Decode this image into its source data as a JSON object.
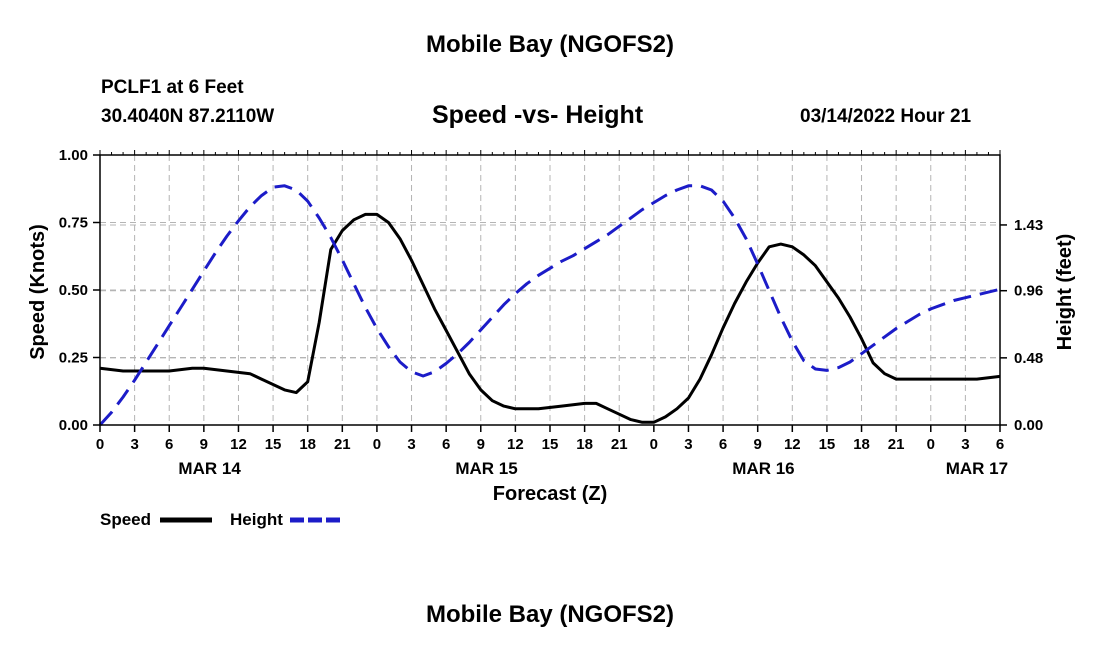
{
  "header": {
    "title": "Mobile Bay (NGOFS2)",
    "station": "PCLF1 at 6 Feet",
    "coords": "30.4040N  87.2110W",
    "subtitle": "Speed -vs- Height",
    "timestamp": "03/14/2022 Hour 21",
    "bottom_title": "Mobile Bay (NGOFS2)"
  },
  "chart_data": {
    "type": "line",
    "title": "Speed -vs- Height",
    "xlabel": "Forecast (Z)",
    "ylabel": "Speed (Knots)",
    "ylabel_right": "Height (feet)",
    "x_range": [
      0,
      78
    ],
    "x_ticks": [
      0,
      3,
      6,
      9,
      12,
      15,
      18,
      21,
      24,
      27,
      30,
      33,
      36,
      39,
      42,
      45,
      48,
      51,
      54,
      57,
      60,
      63,
      66,
      69,
      72,
      75,
      78
    ],
    "x_tick_labels": [
      "0",
      "3",
      "6",
      "9",
      "12",
      "15",
      "18",
      "21",
      "0",
      "3",
      "6",
      "9",
      "12",
      "15",
      "18",
      "21",
      "0",
      "3",
      "6",
      "9",
      "12",
      "15",
      "18",
      "21",
      "0",
      "3",
      "6"
    ],
    "date_labels": [
      {
        "x": 9.5,
        "label": "MAR 14"
      },
      {
        "x": 33.5,
        "label": "MAR 15"
      },
      {
        "x": 57.5,
        "label": "MAR 16"
      },
      {
        "x": 76,
        "label": "MAR 17"
      }
    ],
    "ylim": [
      0,
      1.0
    ],
    "y_ticks": [
      "0.00",
      "0.25",
      "0.50",
      "0.75",
      "1.00"
    ],
    "ylim_right": [
      0,
      1.93
    ],
    "y_ticks_right": [
      "0.00",
      "0.48",
      "0.96",
      "1.43"
    ],
    "grid": true,
    "series": [
      {
        "name": "Speed",
        "axis": "left",
        "color": "#000000",
        "dash": "solid",
        "x": [
          0,
          2,
          4,
          6,
          8,
          9,
          11,
          13,
          14,
          16,
          17,
          18,
          19,
          20,
          21,
          22,
          23,
          24,
          25,
          26,
          27,
          28,
          29,
          30,
          31,
          32,
          33,
          34,
          35,
          36,
          38,
          40,
          42,
          43,
          44,
          45,
          46,
          47,
          48,
          49,
          50,
          51,
          52,
          53,
          54,
          55,
          56,
          57,
          58,
          59,
          60,
          61,
          62,
          63,
          64,
          65,
          66,
          67,
          68,
          69,
          70,
          72,
          74,
          76,
          78
        ],
        "y": [
          0.21,
          0.2,
          0.2,
          0.2,
          0.21,
          0.21,
          0.2,
          0.19,
          0.17,
          0.13,
          0.12,
          0.16,
          0.38,
          0.65,
          0.72,
          0.76,
          0.78,
          0.78,
          0.75,
          0.69,
          0.61,
          0.52,
          0.43,
          0.35,
          0.27,
          0.19,
          0.13,
          0.09,
          0.07,
          0.06,
          0.06,
          0.07,
          0.08,
          0.08,
          0.06,
          0.04,
          0.02,
          0.01,
          0.01,
          0.03,
          0.06,
          0.1,
          0.17,
          0.26,
          0.36,
          0.45,
          0.53,
          0.6,
          0.66,
          0.67,
          0.66,
          0.63,
          0.59,
          0.53,
          0.47,
          0.4,
          0.32,
          0.23,
          0.19,
          0.17,
          0.17,
          0.17,
          0.17,
          0.17,
          0.18
        ]
      },
      {
        "name": "Height",
        "axis": "right",
        "color": "#1c1cc8",
        "dash": "dashed",
        "x": [
          0,
          1,
          2,
          3,
          4,
          5,
          6,
          7,
          8,
          9,
          10,
          11,
          12,
          13,
          14,
          15,
          16,
          17,
          18,
          19,
          20,
          21,
          22,
          23,
          24,
          25,
          26,
          27,
          28,
          29,
          30,
          31,
          32,
          33,
          34,
          35,
          36,
          37,
          38,
          39,
          40,
          41,
          42,
          43,
          44,
          45,
          46,
          47,
          48,
          49,
          50,
          51,
          52,
          53,
          54,
          55,
          56,
          57,
          58,
          59,
          60,
          61,
          62,
          63,
          64,
          65,
          66,
          67,
          68,
          69,
          70,
          71,
          72,
          73,
          74,
          75,
          76,
          77,
          78
        ],
        "y": [
          0.0,
          0.09,
          0.2,
          0.32,
          0.45,
          0.58,
          0.71,
          0.84,
          0.97,
          1.1,
          1.23,
          1.35,
          1.46,
          1.56,
          1.64,
          1.7,
          1.71,
          1.68,
          1.6,
          1.48,
          1.34,
          1.18,
          1.01,
          0.84,
          0.69,
          0.56,
          0.45,
          0.38,
          0.35,
          0.38,
          0.44,
          0.51,
          0.59,
          0.68,
          0.77,
          0.86,
          0.94,
          1.01,
          1.07,
          1.12,
          1.17,
          1.21,
          1.26,
          1.31,
          1.36,
          1.42,
          1.48,
          1.54,
          1.59,
          1.64,
          1.68,
          1.71,
          1.71,
          1.68,
          1.6,
          1.48,
          1.33,
          1.15,
          0.96,
          0.77,
          0.6,
          0.46,
          0.4,
          0.39,
          0.41,
          0.45,
          0.51,
          0.57,
          0.63,
          0.69,
          0.74,
          0.79,
          0.83,
          0.86,
          0.89,
          0.91,
          0.93,
          0.95,
          0.97
        ]
      }
    ],
    "legend": [
      {
        "label": "Speed",
        "color": "#000000",
        "dash": "solid"
      },
      {
        "label": "Height",
        "color": "#1c1cc8",
        "dash": "dashed"
      }
    ],
    "legend_position": "bottom-left"
  }
}
